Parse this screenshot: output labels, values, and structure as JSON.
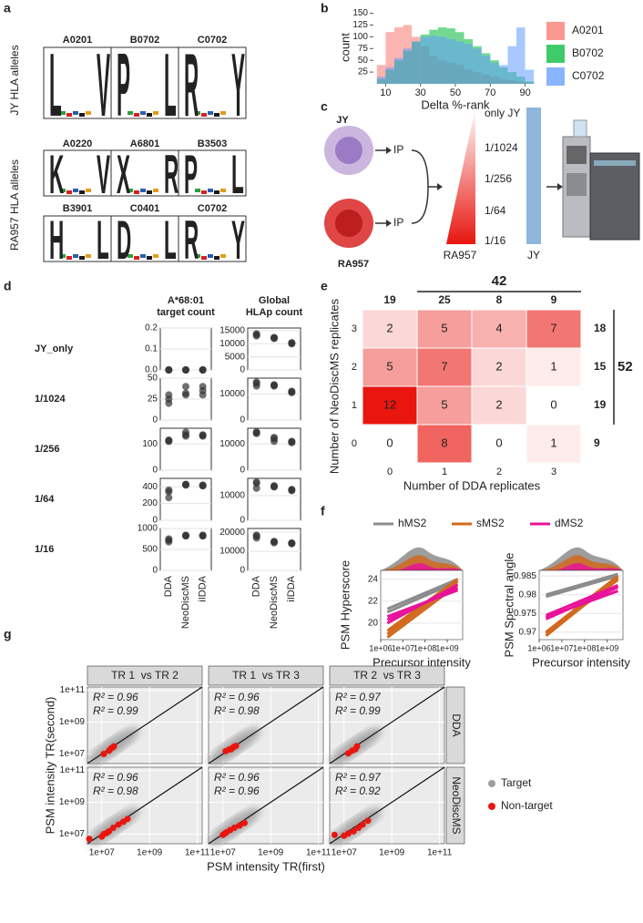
{
  "panel_labels": [
    "a",
    "b",
    "c",
    "d",
    "e",
    "f",
    "g"
  ],
  "logos": {
    "row_labels": [
      "JY HLA alleles",
      "RA957 HLA alleles"
    ],
    "letter_colors": {
      "L": "#1a1a1a",
      "V": "#1a1a1a",
      "P": "#1a1a1a",
      "R": "#2b5fae",
      "K": "#2b5fae",
      "H": "#2b5fae",
      "Y": "#2e9e3c",
      "X": "#2e9e3c",
      "D": "#d62020"
    },
    "alleles": [
      {
        "name": "A0201",
        "letters": [
          "L",
          "V"
        ]
      },
      {
        "name": "B0702",
        "letters": [
          "P",
          "L"
        ]
      },
      {
        "name": "C0702",
        "letters": [
          "R",
          "Y"
        ]
      },
      {
        "name": "A0220",
        "letters": [
          "K",
          "V"
        ]
      },
      {
        "name": "A6801",
        "letters": [
          "X",
          "R"
        ]
      },
      {
        "name": "B3503",
        "letters": [
          "P",
          "L"
        ]
      },
      {
        "name": "B3901",
        "letters": [
          "H",
          "L"
        ]
      },
      {
        "name": "C0401",
        "letters": [
          "D",
          "L"
        ]
      },
      {
        "name": "C0702",
        "letters": [
          "R",
          "Y"
        ]
      }
    ]
  },
  "schematic": {
    "cells": [
      "JY",
      "RA957"
    ],
    "ip_labels": [
      "IP",
      "IP"
    ],
    "dilutions": [
      "only JY",
      "1/1024",
      "1/256",
      "1/64",
      "1/16"
    ],
    "gradient_labels": [
      "RA957",
      "JY"
    ]
  },
  "chart_data": [
    {
      "type": "histogram",
      "xlabel": "Delta %-rank",
      "ylabel": "count",
      "bins": [
        5,
        10,
        15,
        20,
        25,
        30,
        35,
        40,
        45,
        50,
        55,
        60,
        65,
        70,
        75,
        80,
        85,
        90,
        95
      ],
      "series": [
        {
          "name": "A0201",
          "color": "#F8766D",
          "values": [
            40,
            110,
            120,
            125,
            100,
            80,
            60,
            50,
            45,
            40,
            30,
            25,
            20,
            15,
            10,
            8,
            5,
            3
          ]
        },
        {
          "name": "B0702",
          "color": "#00BA38",
          "values": [
            10,
            30,
            50,
            70,
            90,
            105,
            115,
            120,
            118,
            110,
            95,
            80,
            65,
            50,
            35,
            25,
            15,
            5
          ]
        },
        {
          "name": "C0702",
          "color": "#619CFF",
          "values": [
            15,
            35,
            55,
            75,
            90,
            100,
            102,
            100,
            95,
            90,
            85,
            75,
            60,
            45,
            40,
            80,
            120,
            30
          ]
        }
      ],
      "xlim": [
        3,
        97
      ],
      "xticks": [
        10,
        30,
        50,
        70,
        90
      ],
      "ylim": [
        0,
        155
      ],
      "yticks": [
        25,
        50,
        75,
        100,
        125,
        150
      ],
      "legend": "right"
    },
    {
      "type": "dot_grid",
      "titles": [
        [
          "A*68:01",
          "target count"
        ],
        [
          "Global",
          "HLAp count"
        ]
      ],
      "rows": [
        "JY_only",
        "1/1024",
        "1/256",
        "1/64",
        "1/16"
      ],
      "categories": [
        "DDA",
        "NeoDiscMS",
        "iIDDA"
      ],
      "color": "#333333",
      "grid": true,
      "panels": [
        [
          {
            "ylim": [
              0,
              0.2
            ],
            "yticks": [
              {
                "value": 0,
                "label": "0.0"
              },
              0.1,
              0.2
            ],
            "values": [
              [
                0,
                0,
                0
              ],
              [
                0,
                0,
                0
              ],
              [
                0,
                0,
                0
              ]
            ]
          },
          {
            "ylim": [
              0,
              16000
            ],
            "yticks": [
              0,
              5000,
              10000,
              15000
            ],
            "values": [
              [
                13000,
                13500,
                13800
              ],
              [
                12000,
                12200,
                12400
              ],
              [
                10000,
                10200,
                10400
              ]
            ]
          }
        ],
        [
          {
            "ylim": [
              0,
              50
            ],
            "yticks": [
              0,
              25,
              50
            ],
            "values": [
              [
                20,
                25,
                30
              ],
              [
                30,
                32,
                40
              ],
              [
                30,
                35,
                40
              ]
            ]
          },
          {
            "ylim": [
              0,
              16000
            ],
            "yticks": [
              0,
              10000
            ],
            "values": [
              [
                13000,
                14000,
                14500
              ],
              [
                13000,
                13200,
                13500
              ],
              [
                10500,
                10700,
                11000
              ]
            ]
          }
        ],
        [
          {
            "ylim": [
              0,
              160
            ],
            "yticks": [
              0,
              100
            ],
            "values": [
              [
                110,
                112,
                115
              ],
              [
                130,
                135,
                145
              ],
              [
                130,
                132,
                135
              ]
            ]
          },
          {
            "ylim": [
              0,
              16000
            ],
            "yticks": [
              0,
              10000
            ],
            "values": [
              [
                14000,
                14300,
                14600
              ],
              [
                11000,
                12000,
                12500
              ],
              [
                10500,
                10800,
                11000
              ]
            ]
          }
        ],
        [
          {
            "ylim": [
              0,
              500
            ],
            "yticks": [
              0,
              200,
              400
            ],
            "values": [
              [
                270,
                340,
                360
              ],
              [
                420,
                425,
                430
              ],
              [
                410,
                415,
                420
              ]
            ]
          },
          {
            "ylim": [
              0,
              17000
            ],
            "yticks": [
              0,
              10000
            ],
            "values": [
              [
                13000,
                15000,
                15500
              ],
              [
                13500,
                13700,
                14000
              ],
              [
                12000,
                12300,
                12500
              ]
            ]
          }
        ],
        [
          {
            "ylim": [
              0,
              1000
            ],
            "yticks": [
              0,
              500,
              1000
            ],
            "values": [
              [
                680,
                720,
                750
              ],
              [
                820,
                830,
                840
              ],
              [
                820,
                830,
                840
              ]
            ]
          },
          {
            "ylim": [
              0,
              22000
            ],
            "yticks": [
              0,
              10000,
              20000
            ],
            "values": [
              [
                17000,
                18000,
                18500
              ],
              [
                14500,
                15000,
                15200
              ],
              [
                14000,
                14200,
                14400
              ]
            ]
          }
        ]
      ]
    },
    {
      "type": "heatmap",
      "xlabel": "Number of DDA replicates",
      "ylabel": "Number of NeoDiscMS replicates",
      "x": [
        0,
        1,
        2,
        3
      ],
      "y": [
        3,
        2,
        1,
        0
      ],
      "values": [
        [
          2,
          5,
          4,
          7
        ],
        [
          5,
          7,
          2,
          1
        ],
        [
          12,
          5,
          2,
          0
        ],
        [
          0,
          8,
          0,
          1
        ]
      ],
      "col_totals": [
        19,
        25,
        8,
        9
      ],
      "row_totals": [
        18,
        15,
        19,
        9
      ],
      "group_col_total": 42,
      "group_row_total": 52,
      "color_low": "#ffffff",
      "color_high": "#e8160f"
    },
    {
      "type": "line",
      "legend": "top",
      "xlabel": "Precursor intensity",
      "log_x": true,
      "xlim": [
        1000000,
        5000000000
      ],
      "xticks": [
        {
          "value": 1000000,
          "label": "1e+06"
        },
        {
          "value": 10000000,
          "label": "1e+07"
        },
        {
          "value": 100000000,
          "label": "1e+08"
        },
        {
          "value": 1000000000,
          "label": "1e+09"
        }
      ],
      "series": [
        {
          "name": "hMS2",
          "color": "#8c8c8c"
        },
        {
          "name": "sMS2",
          "color": "#d2691e"
        },
        {
          "name": "dMS2",
          "color": "#e8139a"
        }
      ],
      "panels": [
        {
          "ylabel": "PSM Hyperscore",
          "ylim": [
            18.5,
            24.8
          ],
          "yticks": [
            20,
            22,
            24
          ],
          "x": [
            2000000,
            3000000000
          ],
          "lines": [
            [
              [
                21.3,
                24.0
              ],
              [
                21.0,
                23.8
              ]
            ],
            [
              [
                19.0,
                23.8
              ],
              [
                18.7,
                23.5
              ],
              [
                19.3,
                24.0
              ]
            ],
            [
              [
                20.3,
                23.2
              ],
              [
                20.0,
                23.5
              ],
              [
                20.6,
                23.0
              ]
            ]
          ]
        },
        {
          "ylabel": "PSM Spectral angle",
          "ylim": [
            0.968,
            0.9865
          ],
          "yticks": [
            0.97,
            0.975,
            0.98,
            0.985
          ],
          "x": [
            2000000,
            3000000000
          ],
          "lines": [
            [
              [
                0.98,
                0.9855
              ],
              [
                0.9795,
                0.985
              ]
            ],
            [
              [
                0.9695,
                0.984
              ],
              [
                0.969,
                0.9845
              ],
              [
                0.97,
                0.985
              ]
            ],
            [
              [
                0.974,
                0.981
              ],
              [
                0.9735,
                0.982
              ],
              [
                0.9745,
                0.9825
              ]
            ]
          ]
        }
      ]
    },
    {
      "type": "scatter",
      "legend": "right",
      "grid": true,
      "xlabel": "PSM intensity TR(first)",
      "ylabel": "PSM intensity TR(second)",
      "log_x": true,
      "log_y": true,
      "xlim": [
        2500000,
        160000000000
      ],
      "ylim": [
        2500000,
        160000000000
      ],
      "xticks": [
        {
          "value": 10000000,
          "label": "1e+07"
        },
        {
          "value": 1000000000,
          "label": "1e+09"
        },
        {
          "value": 100000000000,
          "label": "1e+11"
        }
      ],
      "yticks": [
        {
          "value": 10000000,
          "label": "1e+07"
        },
        {
          "value": 1000000000,
          "label": "1e+09"
        },
        {
          "value": 100000000000,
          "label": "1e+11"
        }
      ],
      "columns": [
        "TR 1  vs TR 2",
        "TR 1  vs TR 3",
        "TR 2  vs TR 3"
      ],
      "rows": [
        "DDA",
        "NeoDiscMS"
      ],
      "series": [
        {
          "name": "Target",
          "color": "#9e9e9e",
          "r2": [
            [
              0.96,
              0.96,
              0.97
            ],
            [
              0.96,
              0.96,
              0.97
            ]
          ],
          "r2_labels": [
            [
              "R² = 0.96",
              "R² = 0.96",
              "R² = 0.97"
            ],
            [
              "R² = 0.96",
              "R² = 0.96",
              "R² = 0.97"
            ]
          ]
        },
        {
          "name": "Non-target",
          "color": "#e8160f",
          "r2": [
            [
              0.99,
              0.98,
              0.99
            ],
            [
              0.98,
              0.96,
              0.92
            ]
          ],
          "r2_labels": [
            [
              "R² = 0.99",
              "R² = 0.98",
              "R² = 0.99"
            ],
            [
              "R² = 0.98",
              "R² = 0.96",
              "R² = 0.92"
            ]
          ],
          "points": [
            [
              {
                "x": [
                  12000000,
                  20000000,
                  24000000,
                  28000000,
                  32000000
                ],
                "y": [
                  10000000,
                  16000000,
                  22000000,
                  25000000,
                  30000000
                ]
              },
              {
                "x": [
                  13000000,
                  18000000,
                  22000000,
                  26000000,
                  30000000,
                  35000000
                ],
                "y": [
                  15000000,
                  19000000,
                  20000000,
                  25000000,
                  29000000,
                  32000000
                ]
              },
              {
                "x": [
                  15000000,
                  22000000,
                  30000000,
                  35000000
                ],
                "y": [
                  11000000,
                  16000000,
                  20000000,
                  30000000
                ]
              }
            ],
            [
              {
                "x": [
                  3000000,
                  10000000,
                  12000000,
                  16000000,
                  20000000,
                  30000000,
                  50000000,
                  80000000,
                  120000000
                ],
                "y": [
                  5000000,
                  7000000,
                  10000000,
                  12000000,
                  15000000,
                  25000000,
                  40000000,
                  60000000,
                  90000000
                ]
              },
              {
                "x": [
                  10000000,
                  12000000,
                  14000000,
                  20000000,
                  30000000,
                  50000000,
                  80000000
                ],
                "y": [
                  9000000,
                  11000000,
                  13000000,
                  18000000,
                  25000000,
                  35000000,
                  50000000
                ]
              },
              {
                "x": [
                  4000000,
                  10000000,
                  15000000,
                  25000000,
                  40000000,
                  60000000,
                  100000000
                ],
                "y": [
                  9000000,
                  8000000,
                  11000000,
                  15000000,
                  25000000,
                  40000000,
                  70000000
                ]
              }
            ]
          ]
        }
      ]
    }
  ]
}
